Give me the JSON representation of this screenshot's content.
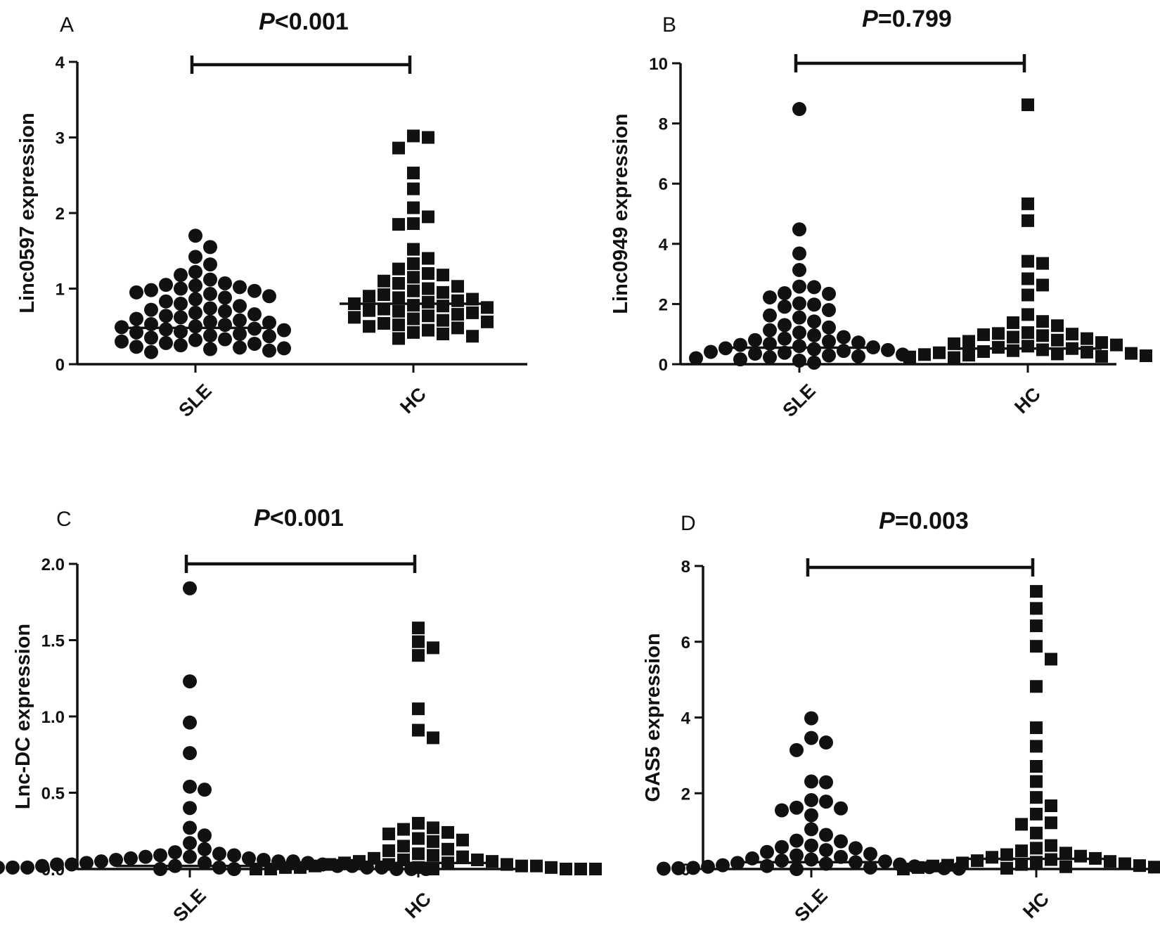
{
  "chart_data": [
    {
      "panel": "A",
      "type": "scatter",
      "title": "P<0.001",
      "p_prefix": "P",
      "p_rest": "<0.001",
      "ylabel": "Linc0597 expression",
      "ylim": [
        0,
        4
      ],
      "yticks": [
        "0",
        "1",
        "2",
        "3",
        "4"
      ],
      "ytick_values": [
        0,
        1,
        2,
        3,
        4
      ],
      "categories": [
        "SLE",
        "HC"
      ],
      "series": [
        {
          "name": "SLE",
          "marker": "circle",
          "median": 0.48,
          "values": [
            1.7,
            1.55,
            1.42,
            1.32,
            1.22,
            1.18,
            1.12,
            1.07,
            1.05,
            1.04,
            1.02,
            1.0,
            0.98,
            0.97,
            0.95,
            0.93,
            0.9,
            0.88,
            0.86,
            0.83,
            0.8,
            0.77,
            0.74,
            0.72,
            0.7,
            0.68,
            0.66,
            0.64,
            0.62,
            0.6,
            0.58,
            0.56,
            0.55,
            0.53,
            0.52,
            0.5,
            0.49,
            0.47,
            0.46,
            0.45,
            0.43,
            0.42,
            0.4,
            0.38,
            0.37,
            0.35,
            0.33,
            0.32,
            0.3,
            0.28,
            0.27,
            0.25,
            0.23,
            0.22,
            0.21,
            0.2,
            0.18,
            0.16
          ]
        },
        {
          "name": "HC",
          "marker": "square",
          "median": 0.8,
          "values": [
            3.02,
            3.0,
            2.86,
            2.53,
            2.32,
            2.07,
            1.95,
            1.86,
            1.85,
            1.52,
            1.4,
            1.33,
            1.26,
            1.2,
            1.18,
            1.15,
            1.1,
            1.07,
            1.03,
            1.0,
            0.97,
            0.95,
            0.92,
            0.9,
            0.88,
            0.86,
            0.84,
            0.82,
            0.8,
            0.78,
            0.77,
            0.75,
            0.73,
            0.71,
            0.7,
            0.68,
            0.66,
            0.64,
            0.62,
            0.6,
            0.58,
            0.56,
            0.54,
            0.52,
            0.5,
            0.48,
            0.45,
            0.42,
            0.4,
            0.37,
            0.34
          ]
        }
      ]
    },
    {
      "panel": "B",
      "type": "scatter",
      "title": "P=0.799",
      "p_prefix": "P",
      "p_rest": "=0.799",
      "ylabel": "Linc0949 expression",
      "ylim": [
        0,
        10
      ],
      "yticks": [
        "0",
        "2",
        "4",
        "6",
        "8",
        "10"
      ],
      "ytick_values": [
        0,
        2,
        4,
        6,
        8,
        10
      ],
      "categories": [
        "SLE",
        "HC"
      ],
      "series": [
        {
          "name": "SLE",
          "marker": "circle",
          "median": 0.55,
          "values": [
            8.48,
            4.48,
            3.68,
            3.13,
            2.58,
            2.56,
            2.36,
            2.34,
            2.22,
            2.02,
            1.98,
            1.91,
            1.8,
            1.62,
            1.55,
            1.42,
            1.3,
            1.22,
            1.13,
            1.05,
            0.96,
            0.9,
            0.85,
            0.8,
            0.76,
            0.72,
            0.68,
            0.64,
            0.6,
            0.56,
            0.53,
            0.5,
            0.47,
            0.44,
            0.41,
            0.38,
            0.35,
            0.32,
            0.29,
            0.26,
            0.23,
            0.2,
            0.16,
            0.12,
            0.05
          ]
        },
        {
          "name": "HC",
          "marker": "square",
          "median": 0.52,
          "values": [
            8.62,
            5.33,
            4.77,
            3.42,
            3.35,
            2.84,
            2.63,
            2.3,
            1.65,
            1.42,
            1.38,
            1.28,
            1.05,
            1.02,
            1.0,
            0.98,
            0.95,
            0.9,
            0.85,
            0.8,
            0.76,
            0.72,
            0.68,
            0.64,
            0.6,
            0.56,
            0.52,
            0.48,
            0.45,
            0.42,
            0.4,
            0.38,
            0.36,
            0.34,
            0.32,
            0.3,
            0.28,
            0.26,
            0.24,
            0.22
          ]
        }
      ]
    },
    {
      "panel": "C",
      "type": "scatter",
      "title": "P<0.001",
      "p_prefix": "P",
      "p_rest": "<0.001",
      "ylabel": "Lnc-DC expression",
      "ylim": [
        0,
        2
      ],
      "yticks": [
        "0.0",
        "0.5",
        "1.0",
        "1.5",
        "2.0"
      ],
      "ytick_values": [
        0,
        0.5,
        1,
        1.5,
        2
      ],
      "categories": [
        "SLE",
        "HC"
      ],
      "series": [
        {
          "name": "SLE",
          "marker": "circle",
          "median": 0.02,
          "values": [
            1.84,
            1.23,
            0.96,
            0.76,
            0.54,
            0.52,
            0.4,
            0.27,
            0.22,
            0.17,
            0.13,
            0.11,
            0.1,
            0.09,
            0.09,
            0.08,
            0.08,
            0.07,
            0.07,
            0.06,
            0.06,
            0.05,
            0.05,
            0.05,
            0.04,
            0.04,
            0.04,
            0.03,
            0.03,
            0.03,
            0.02,
            0.02,
            0.02,
            0.02,
            0.01,
            0.01,
            0.01,
            0.01,
            0.01,
            0.01,
            0.0,
            0.0,
            0.0,
            0.0,
            0.0,
            0.0,
            0.0,
            0.0
          ]
        },
        {
          "name": "HC",
          "marker": "square",
          "median": 0.04,
          "values": [
            1.58,
            1.49,
            1.45,
            1.4,
            1.05,
            0.91,
            0.86,
            0.3,
            0.27,
            0.26,
            0.24,
            0.23,
            0.2,
            0.19,
            0.18,
            0.15,
            0.13,
            0.12,
            0.1,
            0.09,
            0.08,
            0.07,
            0.06,
            0.06,
            0.05,
            0.05,
            0.04,
            0.04,
            0.03,
            0.03,
            0.03,
            0.02,
            0.02,
            0.02,
            0.01,
            0.01,
            0.01,
            0.01,
            0.0,
            0.0,
            0.0,
            0.0,
            0.0,
            0.0
          ]
        }
      ]
    },
    {
      "panel": "D",
      "type": "scatter",
      "title": "P=0.003",
      "p_prefix": "P",
      "p_rest": "=0.003",
      "ylabel": "GAS5 expression",
      "ylim": [
        0,
        8
      ],
      "yticks": [
        "0",
        "2",
        "4",
        "6",
        "8"
      ],
      "ytick_values": [
        0,
        2,
        4,
        6,
        8
      ],
      "categories": [
        "SLE",
        "HC"
      ],
      "series": [
        {
          "name": "SLE",
          "marker": "circle",
          "median": 0.18,
          "values": [
            3.98,
            3.46,
            3.34,
            3.14,
            2.31,
            2.29,
            1.82,
            1.78,
            1.62,
            1.6,
            1.55,
            1.42,
            1.05,
            0.9,
            0.75,
            0.73,
            0.62,
            0.58,
            0.55,
            0.5,
            0.45,
            0.4,
            0.36,
            0.32,
            0.28,
            0.25,
            0.22,
            0.2,
            0.18,
            0.16,
            0.14,
            0.12,
            0.1,
            0.08,
            0.07,
            0.06,
            0.05,
            0.04,
            0.03,
            0.02,
            0.02,
            0.01,
            0.01,
            0.0
          ]
        },
        {
          "name": "HC",
          "marker": "square",
          "median": 0.27,
          "values": [
            7.33,
            6.88,
            6.42,
            5.88,
            5.54,
            4.82,
            3.73,
            3.24,
            2.71,
            2.31,
            1.89,
            1.67,
            1.45,
            1.22,
            1.18,
            0.95,
            0.62,
            0.55,
            0.48,
            0.42,
            0.38,
            0.34,
            0.31,
            0.28,
            0.25,
            0.22,
            0.2,
            0.18,
            0.16,
            0.14,
            0.12,
            0.1,
            0.09,
            0.08,
            0.06,
            0.05,
            0.04,
            0.03,
            0.02,
            0.0
          ]
        }
      ]
    }
  ]
}
